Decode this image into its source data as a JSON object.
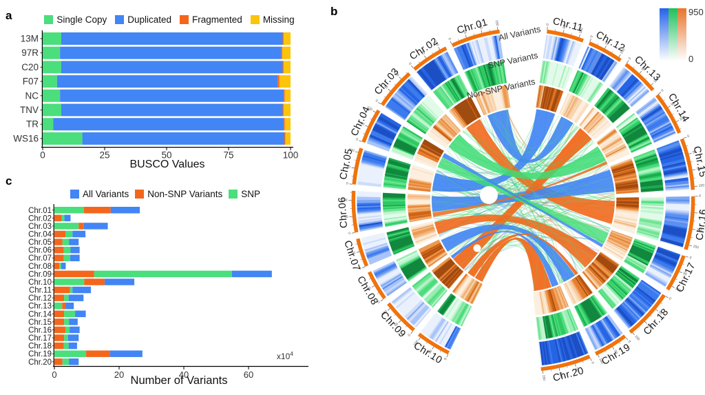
{
  "panels": {
    "a": "a",
    "b": "b",
    "c": "c"
  },
  "chart_data": [
    {
      "panel": "a",
      "type": "bar",
      "stacked": true,
      "orientation": "horizontal",
      "xlabel": "BUSCO Values",
      "xticks": [
        0,
        25,
        50,
        75,
        100
      ],
      "xlim": [
        0,
        103
      ],
      "categories": [
        "13M",
        "97R",
        "C20",
        "F07",
        "NC",
        "TNV",
        "TR",
        "WS16"
      ],
      "series": [
        {
          "name": "Single Copy",
          "color": "#4BDE7C",
          "values": [
            7.5,
            7.0,
            7.5,
            5.8,
            7.0,
            7.5,
            4.3,
            16.0
          ]
        },
        {
          "name": "Duplicated",
          "color": "#4285F4",
          "values": [
            89.3,
            89.2,
            89.3,
            89.0,
            90.3,
            89.3,
            93.0,
            81.5
          ]
        },
        {
          "name": "Fragmented",
          "color": "#F4661C",
          "values": [
            0.4,
            0.5,
            0.4,
            0.7,
            0.4,
            0.4,
            0.4,
            0.4
          ]
        },
        {
          "name": "Missing",
          "color": "#FCC40A",
          "values": [
            2.8,
            3.3,
            2.8,
            4.5,
            2.3,
            2.8,
            2.3,
            2.1
          ]
        }
      ]
    },
    {
      "panel": "b",
      "type": "circos",
      "track_labels": [
        "All Variants",
        "SNP Variants",
        "Non-SNP Variants"
      ],
      "track_keys": [
        "all",
        "snp",
        "nonsnp"
      ],
      "ring_color": "#F0730C",
      "colorbar": {
        "max_label": "950",
        "min_label": "0",
        "columns": [
          "#2563EB",
          "#1FBF5B",
          "#E8742C"
        ]
      },
      "link_colors": {
        "all": "#4285F4",
        "snp": "#3EDC74",
        "nonsnp": "#F2691D"
      },
      "chromosomes": [
        {
          "name": "Chr.01",
          "size_mb": 155
        },
        {
          "name": "Chr.02",
          "size_mb": 120
        },
        {
          "name": "Chr.03",
          "size_mb": 130
        },
        {
          "name": "Chr.04",
          "size_mb": 110
        },
        {
          "name": "Chr.05",
          "size_mb": 115
        },
        {
          "name": "Chr.06",
          "size_mb": 130
        },
        {
          "name": "Chr.07",
          "size_mb": 90
        },
        {
          "name": "Chr.08",
          "size_mb": 95
        },
        {
          "name": "Chr.09",
          "size_mb": 115
        },
        {
          "name": "Chr.10",
          "size_mb": 110
        },
        {
          "name": "Chr.11",
          "size_mb": 115
        },
        {
          "name": "Chr.12",
          "size_mb": 110
        },
        {
          "name": "Chr.13",
          "size_mb": 115
        },
        {
          "name": "Chr.14",
          "size_mb": 135
        },
        {
          "name": "Chr.15",
          "size_mb": 160
        },
        {
          "name": "Chr.16",
          "size_mb": 165
        },
        {
          "name": "Chr.17",
          "size_mb": 115
        },
        {
          "name": "Chr.18",
          "size_mb": 155
        },
        {
          "name": "Chr.19",
          "size_mb": 105
        },
        {
          "name": "Chr.20",
          "size_mb": 155
        }
      ]
    },
    {
      "panel": "c",
      "type": "bar",
      "stacked": true,
      "orientation": "horizontal",
      "xlabel": "Number of Variants",
      "unit_note": "x10",
      "unit_exp": "4",
      "xticks": [
        0,
        20,
        40,
        60
      ],
      "xlim": [
        0,
        70
      ],
      "legend": [
        {
          "name": "All Variants",
          "key": "all",
          "color": "#4285F4"
        },
        {
          "name": "Non-SNP Variants",
          "key": "nonsnp",
          "color": "#F4661C"
        },
        {
          "name": "SNP",
          "key": "snp",
          "color": "#4BDE7C"
        }
      ],
      "rows": [
        {
          "category": "Chr.01",
          "segments": [
            {
              "key": "snp",
              "value": 9.1
            },
            {
              "key": "nonsnp",
              "value": 8.3
            },
            {
              "key": "all",
              "value": 9.0
            }
          ]
        },
        {
          "category": "Chr.02",
          "segments": [
            {
              "key": "nonsnp",
              "value": 2.3
            },
            {
              "key": "snp",
              "value": 0.8
            },
            {
              "key": "all",
              "value": 1.9
            }
          ]
        },
        {
          "category": "Chr.03",
          "segments": [
            {
              "key": "snp",
              "value": 7.5
            },
            {
              "key": "nonsnp",
              "value": 1.6
            },
            {
              "key": "all",
              "value": 7.4
            }
          ]
        },
        {
          "category": "Chr.04",
          "segments": [
            {
              "key": "nonsnp",
              "value": 3.4
            },
            {
              "key": "snp",
              "value": 2.2
            },
            {
              "key": "all",
              "value": 4.0
            }
          ]
        },
        {
          "category": "Chr.05",
          "segments": [
            {
              "key": "nonsnp",
              "value": 2.5
            },
            {
              "key": "snp",
              "value": 2.0
            },
            {
              "key": "all",
              "value": 3.0
            }
          ]
        },
        {
          "category": "Chr.06",
          "segments": [
            {
              "key": "nonsnp",
              "value": 2.9
            },
            {
              "key": "snp",
              "value": 2.1
            },
            {
              "key": "all",
              "value": 2.8
            }
          ]
        },
        {
          "category": "Chr.07",
          "segments": [
            {
              "key": "nonsnp",
              "value": 2.9
            },
            {
              "key": "snp",
              "value": 2.0
            },
            {
              "key": "all",
              "value": 2.9
            }
          ]
        },
        {
          "category": "Chr.08",
          "segments": [
            {
              "key": "nonsnp",
              "value": 1.5
            },
            {
              "key": "snp",
              "value": 0.6
            },
            {
              "key": "all",
              "value": 1.4
            }
          ]
        },
        {
          "category": "Chr.09",
          "segments": [
            {
              "key": "nonsnp",
              "value": 12.3
            },
            {
              "key": "snp",
              "value": 42.6
            },
            {
              "key": "all",
              "value": 12.3
            }
          ]
        },
        {
          "category": "Chr.10",
          "segments": [
            {
              "key": "snp",
              "value": 9.2
            },
            {
              "key": "nonsnp",
              "value": 6.3
            },
            {
              "key": "all",
              "value": 9.2
            }
          ]
        },
        {
          "category": "Chr.11",
          "segments": [
            {
              "key": "nonsnp",
              "value": 4.8
            },
            {
              "key": "snp",
              "value": 0.8
            },
            {
              "key": "all",
              "value": 5.7
            }
          ]
        },
        {
          "category": "Chr.12",
          "segments": [
            {
              "key": "nonsnp",
              "value": 3.0
            },
            {
              "key": "snp",
              "value": 1.4
            },
            {
              "key": "all",
              "value": 4.6
            }
          ]
        },
        {
          "category": "Chr.13",
          "segments": [
            {
              "key": "snp",
              "value": 2.4
            },
            {
              "key": "nonsnp",
              "value": 1.1
            },
            {
              "key": "all",
              "value": 2.5
            }
          ]
        },
        {
          "category": "Chr.14",
          "segments": [
            {
              "key": "nonsnp",
              "value": 3.0
            },
            {
              "key": "snp",
              "value": 3.4
            },
            {
              "key": "all",
              "value": 3.3
            }
          ]
        },
        {
          "category": "Chr.15",
          "segments": [
            {
              "key": "nonsnp",
              "value": 3.0
            },
            {
              "key": "snp",
              "value": 1.5
            },
            {
              "key": "all",
              "value": 2.7
            }
          ]
        },
        {
          "category": "Chr.16",
          "segments": [
            {
              "key": "nonsnp",
              "value": 3.4
            },
            {
              "key": "snp",
              "value": 1.3
            },
            {
              "key": "all",
              "value": 3.1
            }
          ]
        },
        {
          "category": "Chr.17",
          "segments": [
            {
              "key": "nonsnp",
              "value": 3.0
            },
            {
              "key": "snp",
              "value": 1.2
            },
            {
              "key": "all",
              "value": 3.3
            }
          ]
        },
        {
          "category": "Chr.18",
          "segments": [
            {
              "key": "nonsnp",
              "value": 2.9
            },
            {
              "key": "snp",
              "value": 1.5
            },
            {
              "key": "all",
              "value": 2.6
            }
          ]
        },
        {
          "category": "Chr.19",
          "segments": [
            {
              "key": "snp",
              "value": 9.8
            },
            {
              "key": "nonsnp",
              "value": 7.4
            },
            {
              "key": "all",
              "value": 10.0
            }
          ]
        },
        {
          "category": "Chr.20",
          "segments": [
            {
              "key": "nonsnp",
              "value": 2.5
            },
            {
              "key": "snp",
              "value": 2.0
            },
            {
              "key": "all",
              "value": 3.0
            }
          ]
        }
      ]
    }
  ]
}
